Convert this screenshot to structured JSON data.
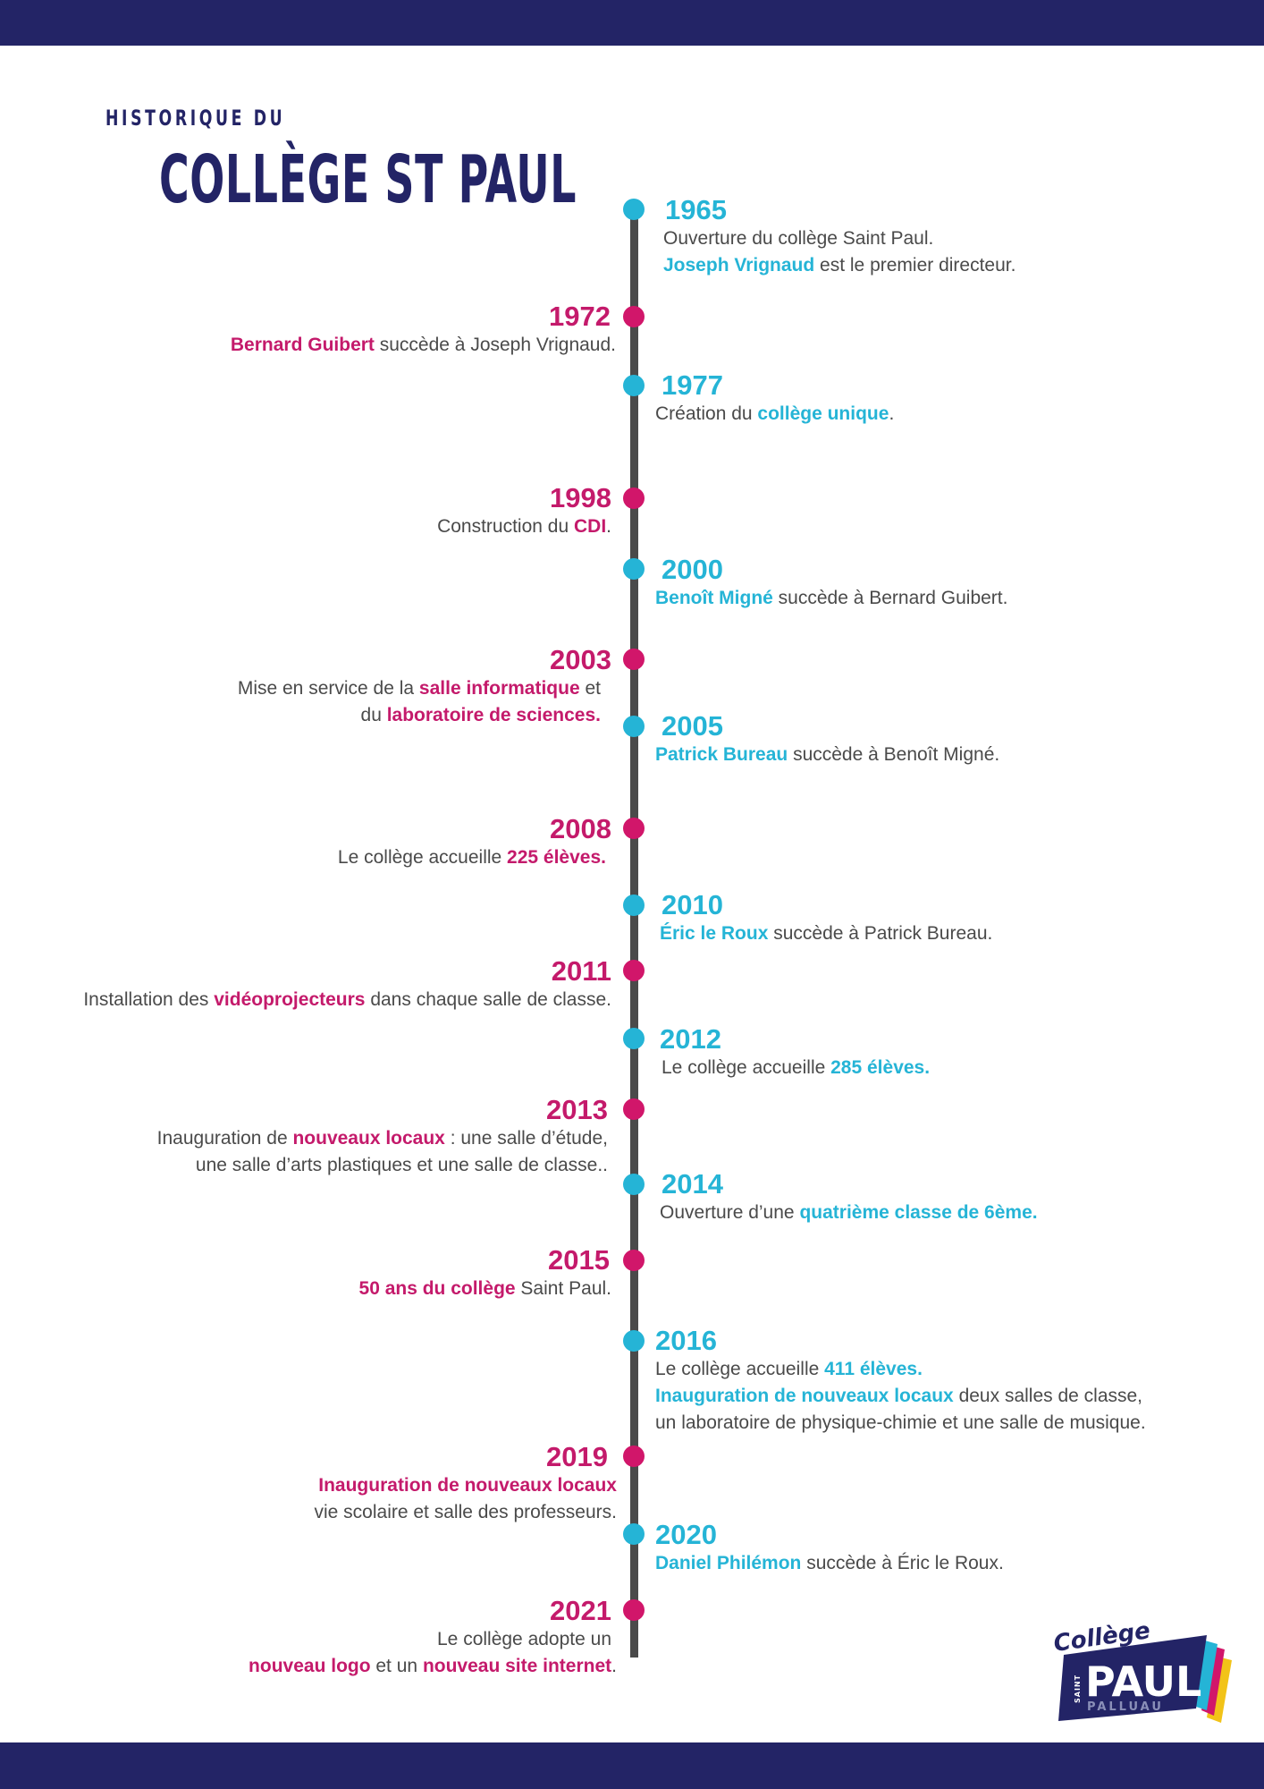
{
  "header": {
    "kicker": "HISTORIQUE DU",
    "title": "COLLÈGE ST PAUL"
  },
  "colors": {
    "navy": "#232466",
    "cyan": "#25b4d6",
    "magenta": "#d1166a",
    "text": "#4a4a4a"
  },
  "events": [
    {
      "year": "1965",
      "line1": {
        "pre": "Ouverture du collège Saint Paul.",
        "hl": "",
        "post": ""
      },
      "line2": {
        "pre": "",
        "hl": "Joseph Vrignaud",
        "post": " est le premier directeur."
      }
    },
    {
      "year": "1972",
      "line1": {
        "pre": "",
        "hl": "Bernard Guibert",
        "post": " succède à Joseph Vrignaud."
      }
    },
    {
      "year": "1977",
      "line1": {
        "pre": "Création du ",
        "hl": "collège unique",
        "post": "."
      }
    },
    {
      "year": "1998",
      "line1": {
        "pre": "Construction du ",
        "hl": "CDI",
        "post": "."
      }
    },
    {
      "year": "2000",
      "line1": {
        "pre": "",
        "hl": "Benoît Migné",
        "post": " succède à Bernard Guibert."
      }
    },
    {
      "year": "2003",
      "line1": {
        "pre": "Mise en service de la  ",
        "hl": "salle informatique",
        "post": " et"
      },
      "line2": {
        "pre": "du ",
        "hl": "laboratoire de sciences.",
        "post": ""
      }
    },
    {
      "year": "2005",
      "line1": {
        "pre": "",
        "hl": "Patrick Bureau",
        "post": " succède à Benoît Migné."
      }
    },
    {
      "year": "2008",
      "line1": {
        "pre": "Le collège accueille ",
        "hl": "225 élèves",
        "post": "."
      }
    },
    {
      "year": "2010",
      "line1": {
        "pre": "",
        "hl": "Éric le Roux",
        "post": " succède à Patrick Bureau."
      }
    },
    {
      "year": "2011",
      "line1": {
        "pre": "Installation des ",
        "hl": "vidéoprojecteurs",
        "post": " dans chaque salle de classe."
      }
    },
    {
      "year": "2012",
      "line1": {
        "pre": "Le collège accueille ",
        "hl": "285 élèves.",
        "post": ""
      }
    },
    {
      "year": "2013",
      "line1": {
        "pre": "Inauguration de ",
        "hl": "nouveaux locaux",
        "post": " : une salle d’étude,"
      },
      "line2": {
        "pre": "une salle d’arts plastiques et une salle de classe..",
        "hl": "",
        "post": ""
      }
    },
    {
      "year": "2014",
      "line1": {
        "pre": "Ouverture d’une ",
        "hl": "quatrième classe de 6ème.",
        "post": ""
      }
    },
    {
      "year": "2015",
      "line1": {
        "pre": "",
        "hl": "50 ans du collège",
        "post": " Saint Paul."
      }
    },
    {
      "year": "2016",
      "line1": {
        "pre": "Le collège accueille ",
        "hl": "411 élèves.",
        "post": ""
      },
      "line2": {
        "pre": "",
        "hl": "Inauguration de nouveaux locaux",
        "post": " deux salles de classe,"
      },
      "line3": {
        "pre": "un laboratoire de physique-chimie et une salle de musique.",
        "hl": "",
        "post": ""
      }
    },
    {
      "year": "2019",
      "line1": {
        "pre": "",
        "hl": "Inauguration de nouveaux locaux",
        "post": ""
      },
      "line2": {
        "pre": "vie scolaire et salle des professeurs.",
        "hl": "",
        "post": ""
      }
    },
    {
      "year": "2020",
      "line1": {
        "pre": "",
        "hl": "Daniel Philémon",
        "post": " succède à Éric le Roux."
      }
    },
    {
      "year": "2021",
      "line1": {
        "pre": "Le collège adopte un",
        "hl": "",
        "post": ""
      },
      "line2": {
        "pre": "",
        "hl": "nouveau logo",
        "post": " et un "
      },
      "line2b": {
        "hl": "nouveau site internet",
        "post": "."
      }
    }
  ],
  "logo": {
    "script_text": "Collège",
    "side_text": "SAINT",
    "main_text": "PAUL",
    "sub_text": "PALLUAU"
  }
}
